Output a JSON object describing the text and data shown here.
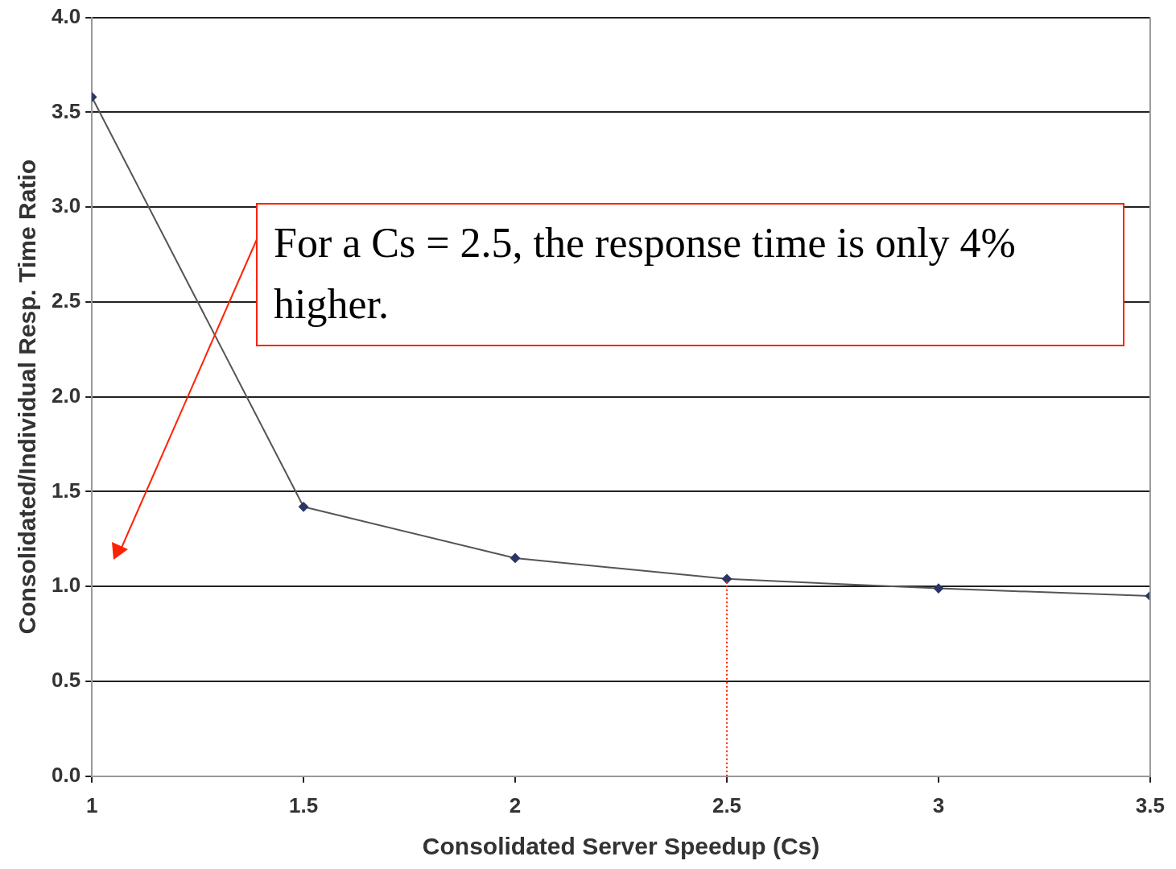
{
  "chart_data": {
    "type": "line",
    "xlabel": "Consolidated Server Speedup (Cs)",
    "ylabel": "Consolidated/Individual Resp. Time Ratio",
    "x": [
      1,
      1.5,
      2,
      2.5,
      3,
      3.5
    ],
    "series": [
      {
        "color": "#2b3566",
        "values": [
          3.58,
          1.42,
          1.15,
          1.04,
          0.99,
          0.95
        ]
      }
    ],
    "xlim": [
      1,
      3.5
    ],
    "xticks": [
      1,
      1.5,
      2,
      2.5,
      3,
      3.5
    ],
    "ylim": [
      0,
      4
    ],
    "yticks": [
      {
        "value": 0,
        "label": "0.0"
      },
      {
        "value": 0.5,
        "label": "0.5"
      },
      {
        "value": 1,
        "label": "1.0"
      },
      {
        "value": 1.5,
        "label": "1.5"
      },
      {
        "value": 2,
        "label": "2.0"
      },
      {
        "value": 2.5,
        "label": "2.5"
      },
      {
        "value": 3,
        "label": "3.0"
      },
      {
        "value": 3.5,
        "label": "3.5"
      },
      {
        "value": 4,
        "label": "4.0"
      }
    ],
    "grid": "y",
    "legend": false,
    "marker": "diamond",
    "line_style": "solid",
    "ref_lines": [
      {
        "axis": "x",
        "value": 2.5,
        "color": "#ff2200",
        "line_style": "dotted"
      }
    ],
    "annotations": [
      "For a Cs = 2.5, the response time is only 4% higher."
    ]
  }
}
